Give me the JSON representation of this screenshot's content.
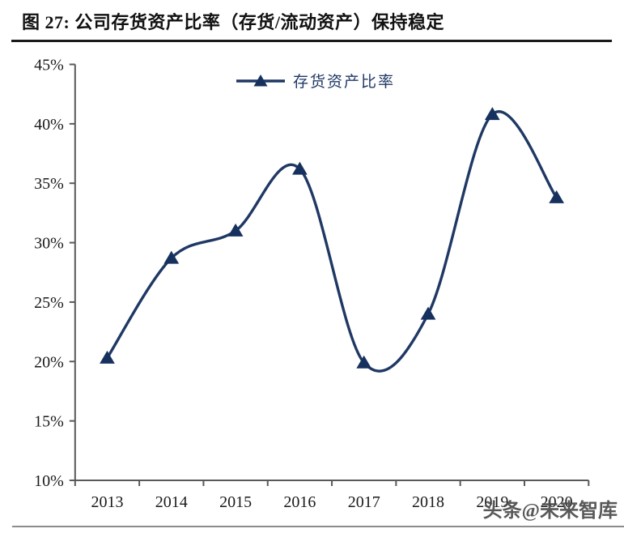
{
  "title": {
    "text": "图 27:  公司存货资产比率（存货/流动资产）保持稳定"
  },
  "watermark": {
    "text": "头条@未来智库"
  },
  "chart_data": {
    "type": "line",
    "smooth": true,
    "title": "公司存货资产比率（存货/流动资产）保持稳定",
    "categories": [
      "2013",
      "2014",
      "2015",
      "2016",
      "2017",
      "2018",
      "2019",
      "2020"
    ],
    "series": [
      {
        "name": "存货资产比率",
        "values": [
          20.3,
          28.7,
          31.0,
          36.2,
          19.9,
          24.0,
          40.8,
          33.8
        ]
      }
    ],
    "xlabel": "",
    "ylabel": "",
    "ylim": [
      10,
      45
    ],
    "ytick_step": 5,
    "ytick_labels": [
      "10%",
      "15%",
      "20%",
      "25%",
      "30%",
      "35%",
      "40%",
      "45%"
    ],
    "grid": false,
    "legend_position": "top-center",
    "marker": "triangle-up",
    "colors": {
      "series_line": "#1F3864",
      "marker_fill": "#17315E",
      "axis": "#595959",
      "tick_label": "#1a1a1a",
      "legend_text": "#1F3864"
    }
  }
}
